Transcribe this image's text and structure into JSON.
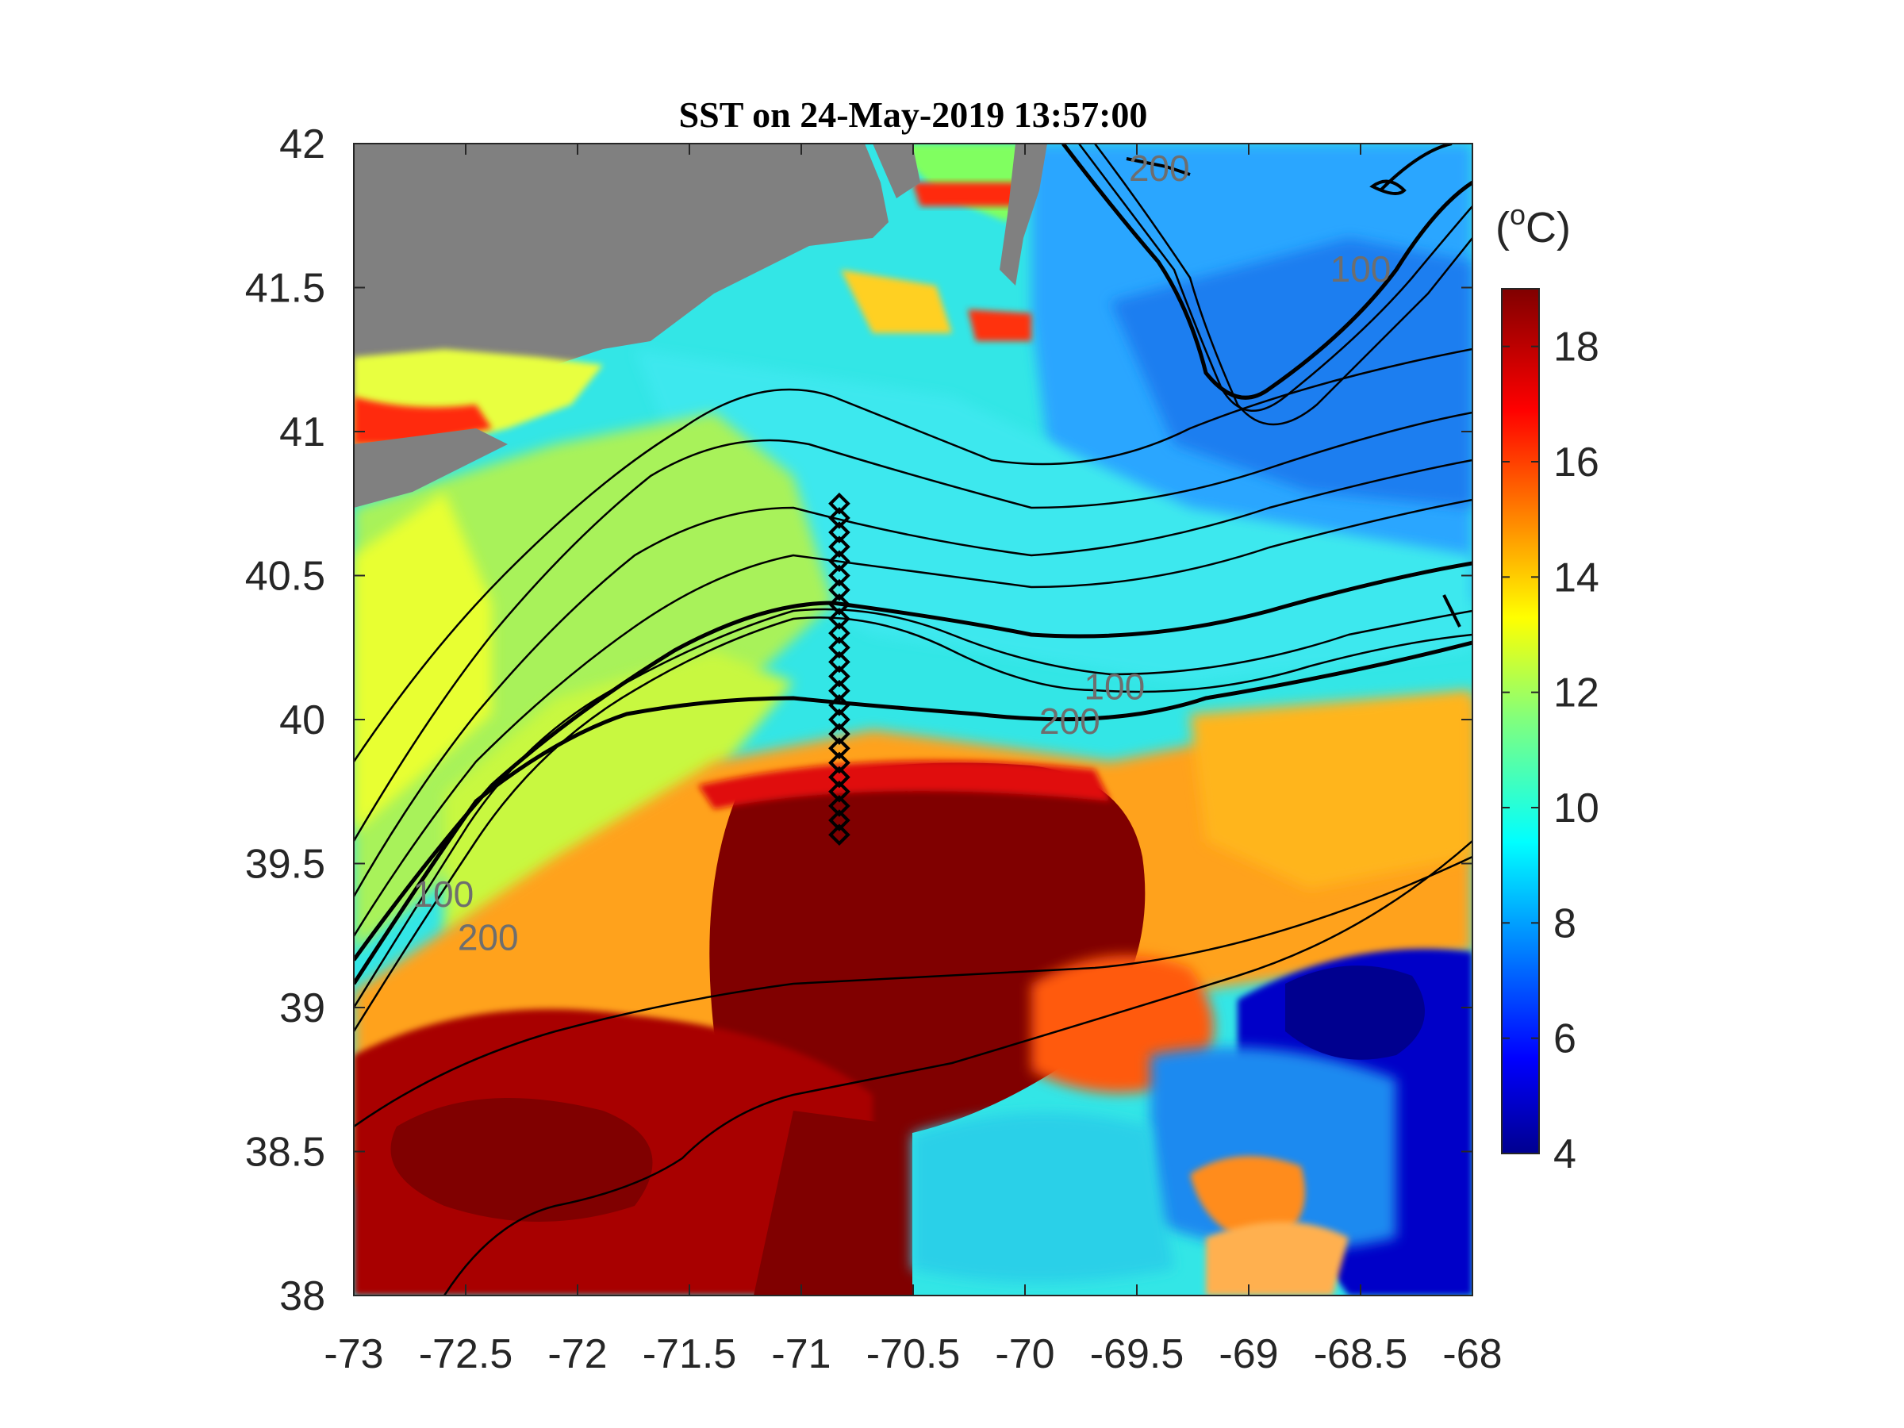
{
  "title": "SST on 24-May-2019 13:57:00",
  "colorbar": {
    "unit_prefix": "(",
    "unit_sup": "o",
    "unit_suffix": "C)",
    "ticks": [
      "4",
      "6",
      "8",
      "10",
      "12",
      "14",
      "16",
      "18"
    ],
    "range": [
      4,
      19
    ],
    "colormap": "jet"
  },
  "axes": {
    "x_ticks": [
      "-73",
      "-72.5",
      "-72",
      "-71.5",
      "-71",
      "-70.5",
      "-70",
      "-69.5",
      "-69",
      "-68.5",
      "-68"
    ],
    "y_ticks": [
      "38",
      "38.5",
      "39",
      "39.5",
      "40",
      "40.5",
      "41",
      "41.5",
      "42"
    ],
    "xlim": [
      -73,
      -68
    ],
    "ylim": [
      38,
      42
    ]
  },
  "contour_labels": [
    {
      "text": "200",
      "lon": -69.4,
      "lat": 41.87
    },
    {
      "text": "100",
      "lon": -68.5,
      "lat": 41.52
    },
    {
      "text": "100",
      "lon": -69.6,
      "lat": 40.07
    },
    {
      "text": "200",
      "lon": -69.8,
      "lat": 39.95
    },
    {
      "text": "100",
      "lon": -72.6,
      "lat": 39.35
    },
    {
      "text": "200",
      "lon": -72.4,
      "lat": 39.2
    }
  ],
  "colors": {
    "land": "#808080",
    "warm_core": "#800000",
    "contour": "#000000"
  }
}
